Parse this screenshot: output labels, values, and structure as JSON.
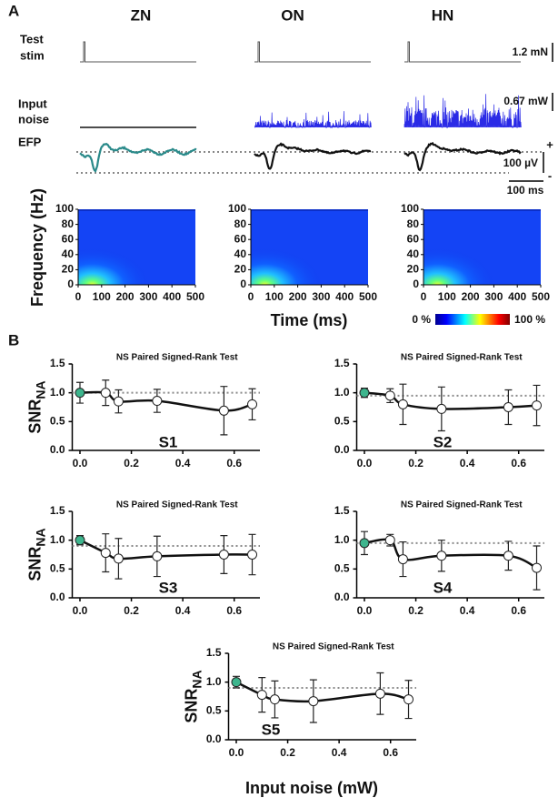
{
  "panel_a": {
    "label": "A",
    "columns": [
      "ZN",
      "ON",
      "HN"
    ],
    "rows": {
      "stim": [
        "Test",
        "stim"
      ],
      "noise": [
        "Input",
        "noise"
      ],
      "efp": "EFP"
    },
    "scale_labels": {
      "force": "1.2 mN",
      "power": "0.67 mW",
      "voltage": "100 µV",
      "time": "100 ms",
      "plus": "+",
      "minus": "-"
    },
    "spectrogram": {
      "y_label": "Frequency (Hz)",
      "x_label": "Time (ms)",
      "xlim": [
        0,
        500
      ],
      "ylim": [
        0,
        100
      ],
      "xticks": [
        0,
        100,
        200,
        300,
        400,
        500
      ],
      "yticks": [
        0,
        20,
        40,
        60,
        80,
        100
      ],
      "colorbar": [
        "0 %",
        "100 %"
      ]
    }
  },
  "panel_b_label": "B",
  "chart_data": [
    {
      "type": "line",
      "title": "NS Paired Signed-Rank Test",
      "label": "S1",
      "y_label": {
        "main": "SNR",
        "sub": "NA"
      },
      "x": [
        0,
        0.1,
        0.15,
        0.3,
        0.56,
        0.67
      ],
      "xlim": [
        -0.03,
        0.7
      ],
      "xticks": [
        {
          "value": 0,
          "label": "0.0"
        },
        0.2,
        0.4,
        0.6
      ],
      "ylim": [
        0,
        1.5
      ],
      "yticks": [
        {
          "value": 0,
          "label": "0.0"
        },
        0.5,
        {
          "value": 1,
          "label": "1.0"
        },
        1.5
      ],
      "reference_line": 1.0,
      "series": [
        {
          "color": "#111111",
          "point_colors": [
            "#3db58d",
            "#ffffff",
            "#ffffff",
            "#ffffff",
            "#ffffff",
            "#ffffff"
          ],
          "values": [
            1.0,
            1.0,
            0.85,
            0.86,
            0.69,
            0.8
          ],
          "errors": [
            0.18,
            0.22,
            0.2,
            0.2,
            0.42,
            0.27
          ]
        }
      ]
    },
    {
      "type": "line",
      "title": "NS Paired Signed-Rank Test",
      "label": "S2",
      "x": [
        0,
        0.1,
        0.15,
        0.3,
        0.56,
        0.67
      ],
      "xlim": [
        -0.03,
        0.7
      ],
      "xticks": [
        {
          "value": 0,
          "label": "0.0"
        },
        0.2,
        0.4,
        0.6
      ],
      "ylim": [
        0,
        1.5
      ],
      "yticks": [
        {
          "value": 0,
          "label": "0.0"
        },
        0.5,
        {
          "value": 1,
          "label": "1.0"
        },
        1.5
      ],
      "reference_line": 0.95,
      "series": [
        {
          "color": "#111111",
          "point_colors": [
            "#3db58d",
            "#ffffff",
            "#ffffff",
            "#ffffff",
            "#ffffff",
            "#ffffff"
          ],
          "values": [
            1.0,
            0.95,
            0.8,
            0.72,
            0.75,
            0.78
          ],
          "errors": [
            0.08,
            0.12,
            0.35,
            0.38,
            0.3,
            0.35
          ]
        }
      ]
    },
    {
      "type": "line",
      "title": "NS Paired Signed-Rank Test",
      "label": "S3",
      "y_label": {
        "main": "SNR",
        "sub": "NA"
      },
      "x": [
        0,
        0.1,
        0.15,
        0.3,
        0.56,
        0.67
      ],
      "xlim": [
        -0.03,
        0.7
      ],
      "xticks": [
        {
          "value": 0,
          "label": "0.0"
        },
        0.2,
        0.4,
        0.6
      ],
      "ylim": [
        0,
        1.5
      ],
      "yticks": [
        {
          "value": 0,
          "label": "0.0"
        },
        0.5,
        {
          "value": 1,
          "label": "1.0"
        },
        1.5
      ],
      "reference_line": 0.9,
      "series": [
        {
          "color": "#111111",
          "point_colors": [
            "#3db58d",
            "#ffffff",
            "#ffffff",
            "#ffffff",
            "#ffffff",
            "#ffffff"
          ],
          "values": [
            1.0,
            0.78,
            0.68,
            0.72,
            0.75,
            0.75
          ],
          "errors": [
            0.08,
            0.33,
            0.35,
            0.35,
            0.33,
            0.35
          ]
        }
      ]
    },
    {
      "type": "line",
      "title": "NS Paired Signed-Rank Test",
      "label": "S4",
      "x": [
        0,
        0.1,
        0.15,
        0.3,
        0.56,
        0.67
      ],
      "xlim": [
        -0.03,
        0.7
      ],
      "xticks": [
        {
          "value": 0,
          "label": "0.0"
        },
        0.2,
        0.4,
        0.6
      ],
      "ylim": [
        0,
        1.5
      ],
      "yticks": [
        {
          "value": 0,
          "label": "0.0"
        },
        0.5,
        {
          "value": 1,
          "label": "1.0"
        },
        1.5
      ],
      "reference_line": 0.95,
      "series": [
        {
          "color": "#111111",
          "point_colors": [
            "#3db58d",
            "#ffffff",
            "#ffffff",
            "#ffffff",
            "#ffffff",
            "#ffffff"
          ],
          "values": [
            0.95,
            1.0,
            0.67,
            0.73,
            0.73,
            0.52
          ],
          "errors": [
            0.2,
            0.1,
            0.3,
            0.27,
            0.25,
            0.38
          ]
        }
      ]
    },
    {
      "type": "line",
      "title": "NS Paired Signed-Rank Test",
      "label": "S5",
      "y_label": {
        "main": "SNR",
        "sub": "NA"
      },
      "x_label": "Input noise (mW)",
      "x": [
        0,
        0.1,
        0.15,
        0.3,
        0.56,
        0.67
      ],
      "xlim": [
        -0.03,
        0.7
      ],
      "xticks": [
        {
          "value": 0,
          "label": "0.0"
        },
        0.2,
        0.4,
        0.6
      ],
      "ylim": [
        0,
        1.5
      ],
      "yticks": [
        {
          "value": 0,
          "label": "0.0"
        },
        0.5,
        {
          "value": 1,
          "label": "1.0"
        },
        1.5
      ],
      "reference_line": 0.9,
      "series": [
        {
          "color": "#111111",
          "point_colors": [
            "#3db58d",
            "#ffffff",
            "#ffffff",
            "#ffffff",
            "#ffffff",
            "#ffffff"
          ],
          "values": [
            1.0,
            0.78,
            0.7,
            0.67,
            0.8,
            0.7
          ],
          "errors": [
            0.1,
            0.3,
            0.32,
            0.37,
            0.36,
            0.33
          ]
        }
      ]
    }
  ]
}
